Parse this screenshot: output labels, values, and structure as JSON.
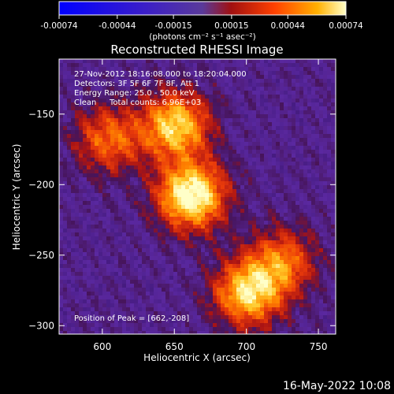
{
  "chart_data": {
    "type": "heatmap",
    "title": "Reconstructed RHESSI Image",
    "xlabel": "Heliocentric X (arcsec)",
    "ylabel": "Heliocentric Y (arcsec)",
    "xlim": [
      570,
      762
    ],
    "ylim": [
      -306,
      -111
    ],
    "x_ticks": [
      600,
      650,
      700,
      750
    ],
    "y_ticks": [
      -150,
      -200,
      -250,
      -300
    ],
    "colorbar": {
      "tick_labels": [
        "-0.00074",
        "-0.00044",
        "-0.00015",
        "0.00015",
        "0.00044",
        "0.00074"
      ],
      "tick_values": [
        -0.00074,
        -0.00044,
        -0.00015,
        0.00015,
        0.00044,
        0.00074
      ],
      "range": [
        -0.00074,
        0.00074
      ],
      "unit_label": "(photons cm⁻² s⁻¹ asec⁻²)"
    },
    "sources": [
      {
        "x": 662,
        "y": -208,
        "peak": 0.00074
      },
      {
        "x": 651,
        "y": -158,
        "peak": 0.0006
      },
      {
        "x": 701,
        "y": -277,
        "peak": 0.0006
      },
      {
        "x": 605,
        "y": -168,
        "peak": 0.0004
      },
      {
        "x": 725,
        "y": -255,
        "peak": 0.0004
      }
    ],
    "annotations": {
      "time_range": "27-Nov-2012 18:16:08.000 to 18:20:04.000",
      "detectors": "Detectors: 3F 5F 6F 7F 8F, Att 1",
      "energy_range": "Energy Range: 25.0 - 50.0 keV",
      "clean": "Clean",
      "total_counts": "Total counts: 6.96E+03",
      "peak_position": "Position of Peak = [662,-208]"
    }
  },
  "timestamp": "16-May-2022 10:08"
}
